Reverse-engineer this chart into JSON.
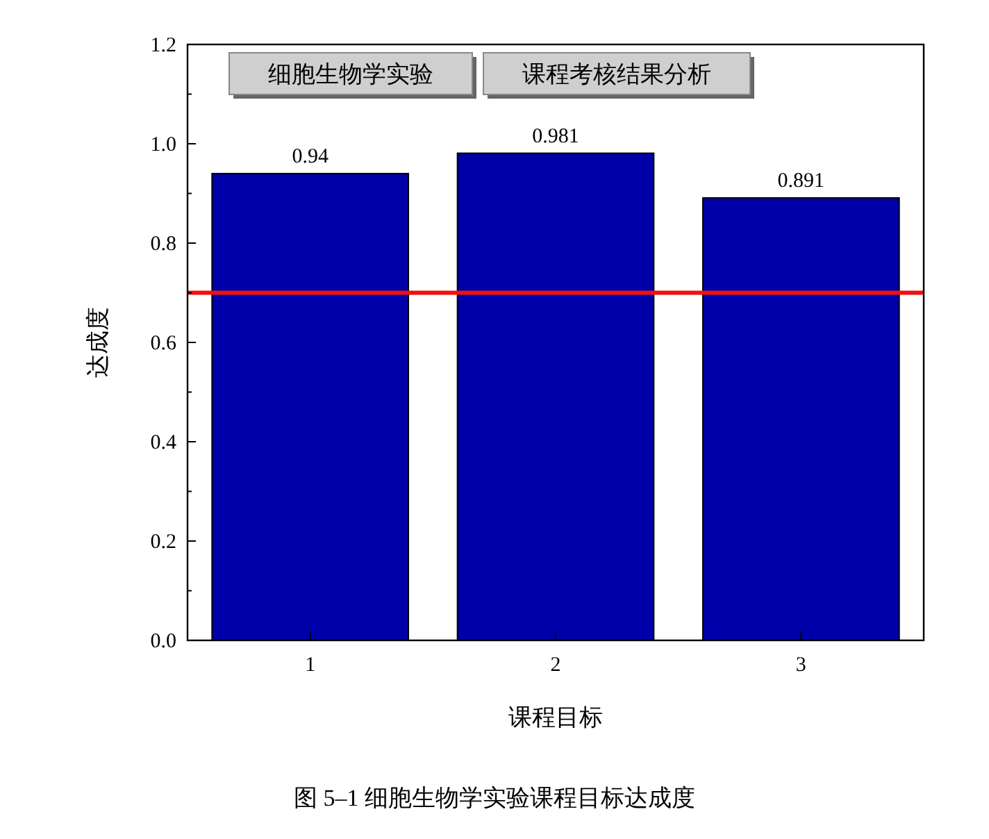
{
  "chart_data": {
    "type": "bar",
    "title": "图 5–1  细胞生物学实验课程目标达成度",
    "xlabel": "课程目标",
    "ylabel": "达成度",
    "annotations": [
      "细胞生物学实验",
      "课程考核结果分析"
    ],
    "categories": [
      "1",
      "2",
      "3"
    ],
    "values": [
      0.94,
      0.981,
      0.891
    ],
    "color": "#0000a8",
    "data_labels": true,
    "ylim": [
      0,
      1.2
    ],
    "yticks": [
      {
        "value": 0,
        "label": "0.0"
      },
      {
        "value": 0.2,
        "label": "0.2"
      },
      {
        "value": 0.4,
        "label": "0.4"
      },
      {
        "value": 0.6,
        "label": "0.6"
      },
      {
        "value": 0.8,
        "label": "0.8"
      },
      {
        "value": 1,
        "label": "1.0"
      },
      {
        "value": 1.2,
        "label": "1.2"
      }
    ],
    "ref_lines": [
      {
        "axis": "y",
        "value": 0.7,
        "color": "#ee1111"
      }
    ],
    "grid": false
  }
}
